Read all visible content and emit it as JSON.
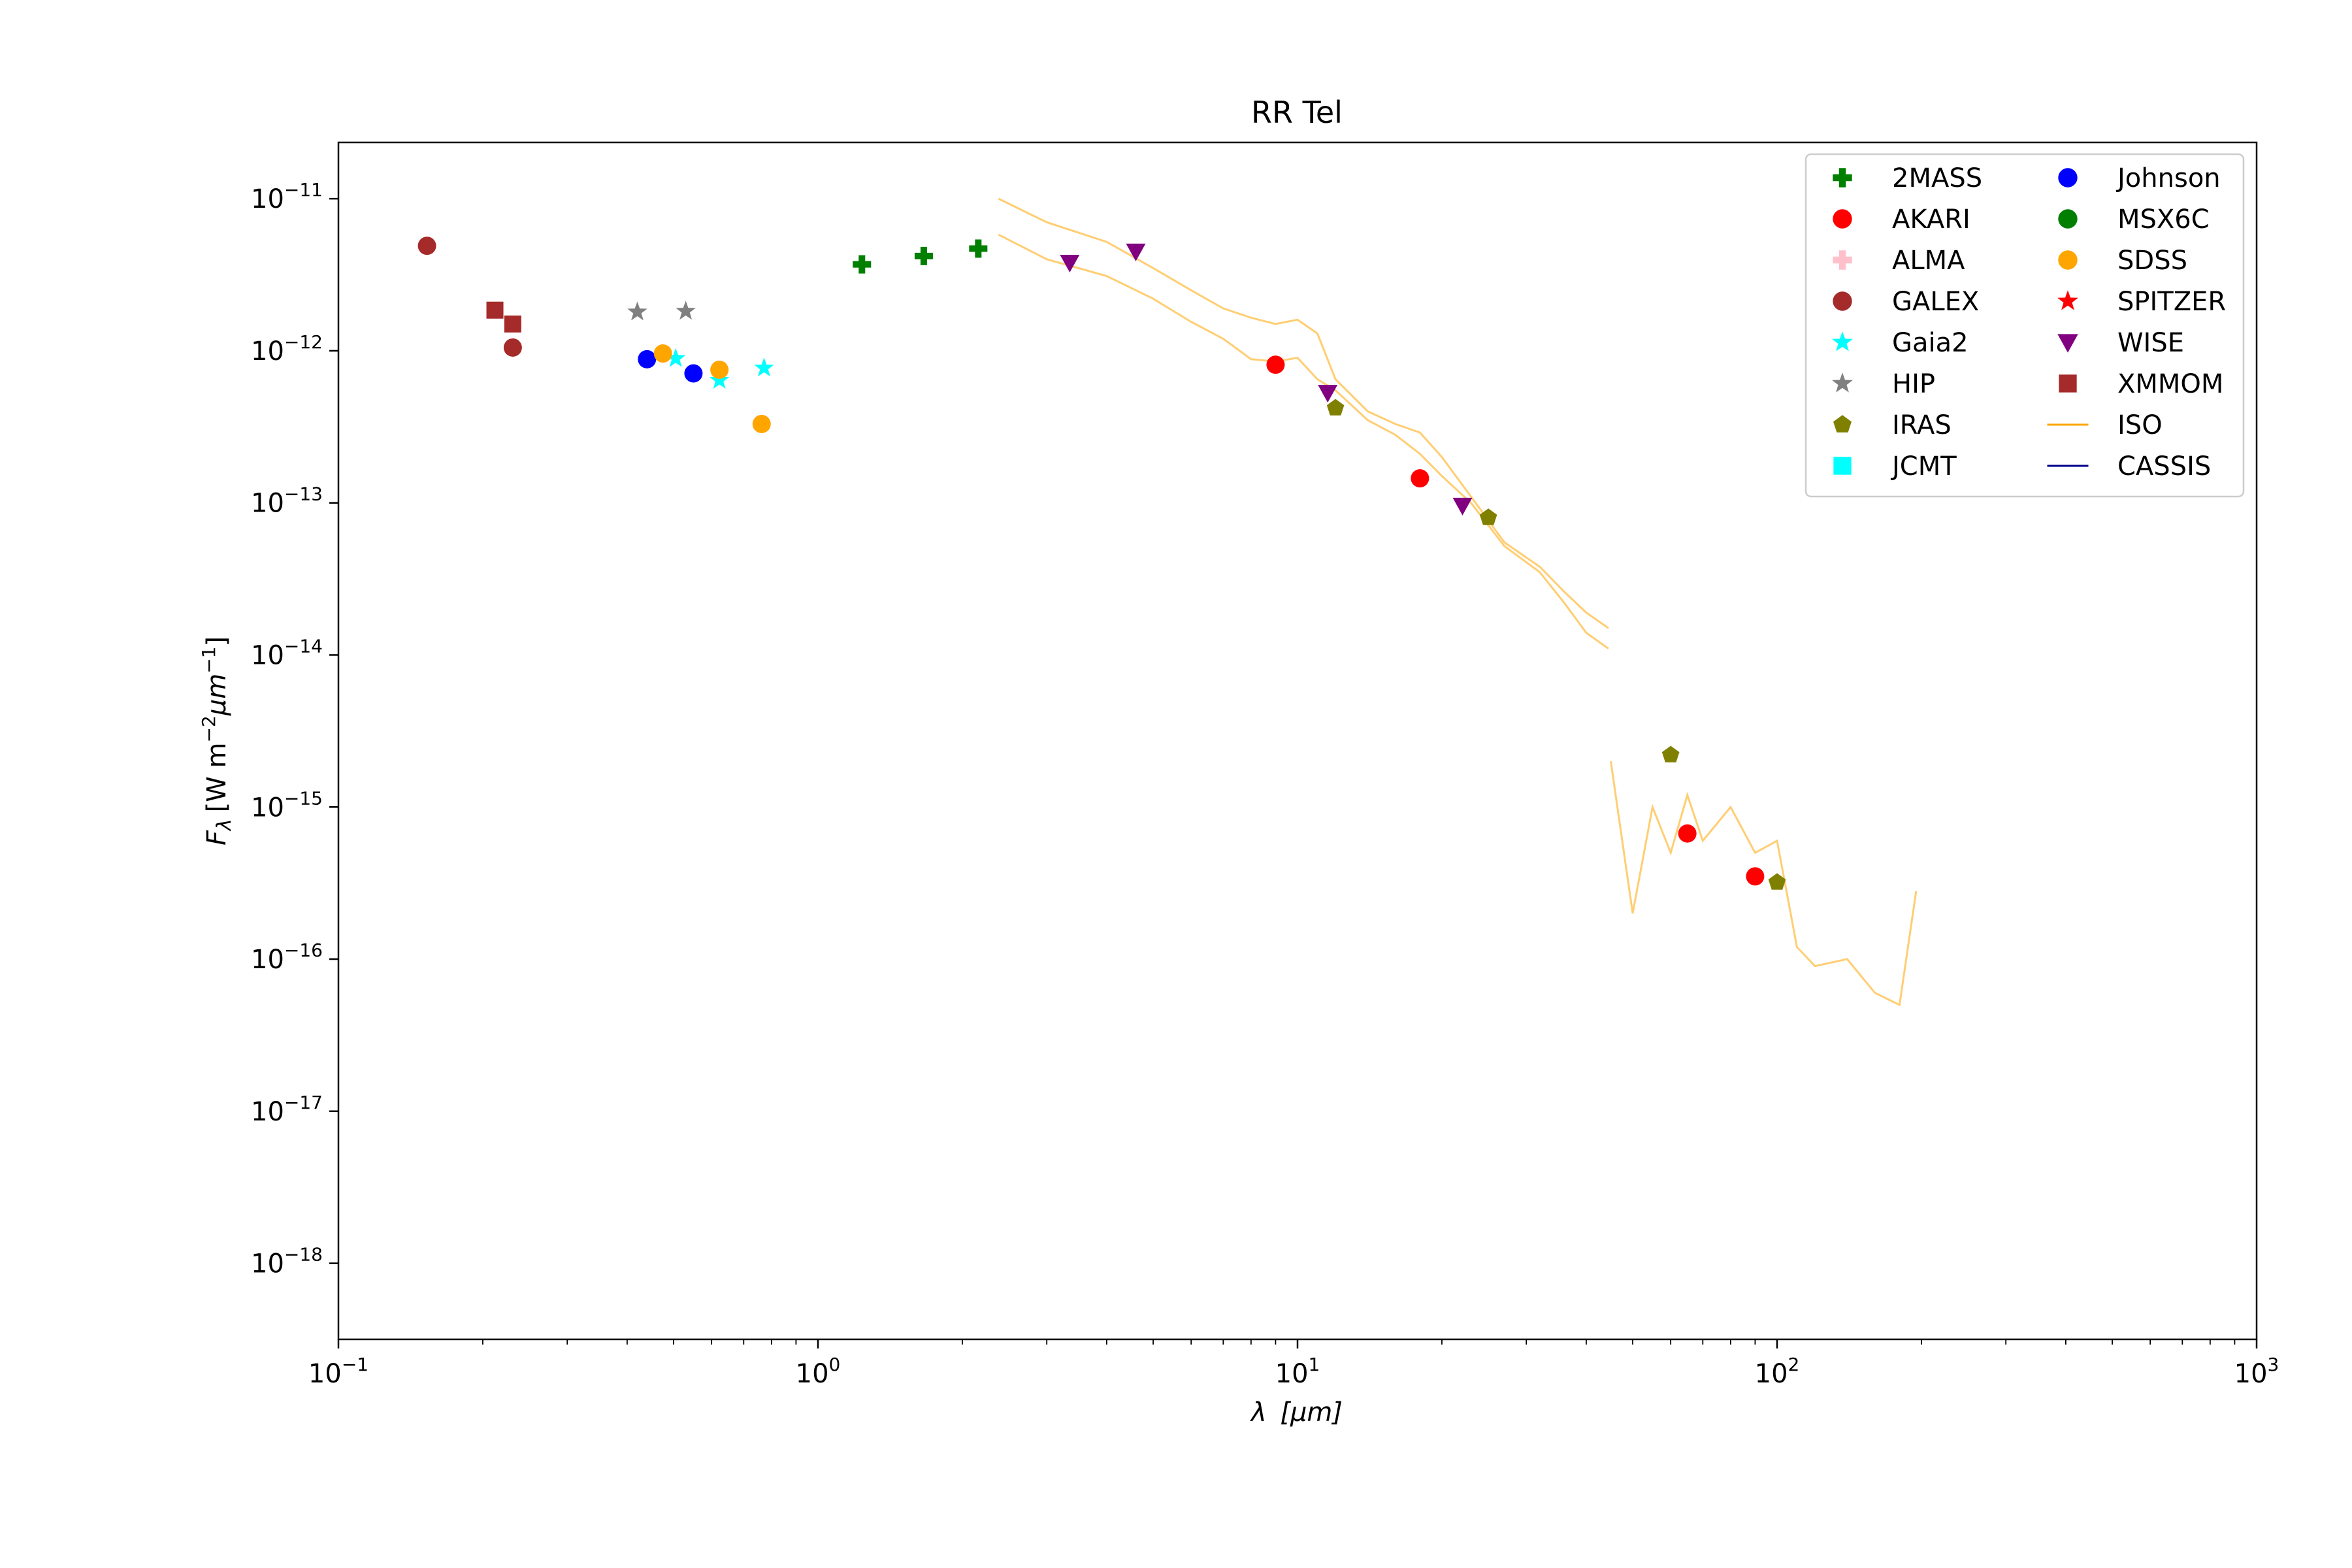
{
  "chart_data": {
    "type": "scatter",
    "title": "RR Tel",
    "xlabel_var": "λ",
    "xlabel_unit": "[μm]",
    "ylabel_var": "F",
    "ylabel_sub": "λ",
    "ylabel_unit_a": "[W m",
    "ylabel_exp_a": "−2",
    "ylabel_unit_b": "μm",
    "ylabel_exp_b": "−1",
    "ylabel_close": "]",
    "xscale": "log",
    "yscale": "log",
    "xlim": [
      0.1,
      1000
    ],
    "ylim_log10": [
      -18.5,
      -10.63
    ],
    "grid": false,
    "legend_position": "upper-right",
    "x_ticks": [
      {
        "value": 0.1,
        "base": "10",
        "exp": "−1"
      },
      {
        "value": 1,
        "base": "10",
        "exp": "0"
      },
      {
        "value": 10,
        "base": "10",
        "exp": "1"
      },
      {
        "value": 100,
        "base": "10",
        "exp": "2"
      },
      {
        "value": 1000,
        "base": "10",
        "exp": "3"
      }
    ],
    "y_ticks": [
      {
        "value": -11,
        "base": "10",
        "exp": "−11"
      },
      {
        "value": -12,
        "base": "10",
        "exp": "−12"
      },
      {
        "value": -13,
        "base": "10",
        "exp": "−13"
      },
      {
        "value": -14,
        "base": "10",
        "exp": "−14"
      },
      {
        "value": -15,
        "base": "10",
        "exp": "−15"
      },
      {
        "value": -16,
        "base": "10",
        "exp": "−16"
      },
      {
        "value": -17,
        "base": "10",
        "exp": "−17"
      },
      {
        "value": -18,
        "base": "10",
        "exp": "−18"
      }
    ],
    "series": [
      {
        "name": "2MASS",
        "marker": "plus",
        "color": "#007f00",
        "points": [
          [
            1.235,
            3.7e-12
          ],
          [
            1.662,
            4.2e-12
          ],
          [
            2.159,
            4.7e-12
          ]
        ]
      },
      {
        "name": "AKARI",
        "marker": "circle",
        "color": "#ff0000",
        "points": [
          [
            9.0,
            8.1e-13
          ],
          [
            18.0,
            1.45e-13
          ],
          [
            65.0,
            6.7e-16
          ],
          [
            90.0,
            3.5e-16
          ]
        ]
      },
      {
        "name": "ALMA",
        "marker": "plus",
        "color": "#ffc0cb",
        "points": []
      },
      {
        "name": "GALEX",
        "marker": "circle",
        "color": "#a52a2a",
        "points": [
          [
            0.153,
            4.9e-12
          ],
          [
            0.231,
            1.05e-12
          ]
        ]
      },
      {
        "name": "Gaia2",
        "marker": "star",
        "color": "#00ffff",
        "points": [
          [
            0.505,
            8.9e-13
          ],
          [
            0.623,
            6.4e-13
          ],
          [
            0.772,
            7.7e-13
          ]
        ]
      },
      {
        "name": "HIP",
        "marker": "star",
        "color": "#808080",
        "points": [
          [
            0.42,
            1.8e-12
          ],
          [
            0.53,
            1.82e-12
          ]
        ]
      },
      {
        "name": "IRAS",
        "marker": "pentagon",
        "color": "#808000",
        "points": [
          [
            12.0,
            4.2e-13
          ],
          [
            25.0,
            8e-14
          ],
          [
            60.0,
            2.2e-15
          ],
          [
            100.0,
            3.2e-16
          ]
        ]
      },
      {
        "name": "JCMT",
        "marker": "square",
        "color": "#00ffff",
        "points": []
      },
      {
        "name": "Johnson",
        "marker": "circle",
        "color": "#0000ff",
        "points": [
          [
            0.44,
            8.8e-13
          ],
          [
            0.55,
            7.1e-13
          ]
        ]
      },
      {
        "name": "MSX6C",
        "marker": "circle",
        "color": "#007f00",
        "points": []
      },
      {
        "name": "SDSS",
        "marker": "circle",
        "color": "#ffa500",
        "points": [
          [
            0.475,
            9.6e-13
          ],
          [
            0.623,
            7.5e-13
          ],
          [
            0.763,
            3.3e-13
          ]
        ]
      },
      {
        "name": "SPITZER",
        "marker": "star",
        "color": "#ff0000",
        "points": []
      },
      {
        "name": "WISE",
        "marker": "triangle-down",
        "color": "#800080",
        "points": [
          [
            3.35,
            3.8e-12
          ],
          [
            4.6,
            4.5e-12
          ],
          [
            11.56,
            5.3e-13
          ],
          [
            22.08,
            9.6e-14
          ]
        ]
      },
      {
        "name": "XMMOM",
        "marker": "square",
        "color": "#a52a2a",
        "points": [
          [
            0.212,
            1.85e-12
          ],
          [
            0.231,
            1.5e-12
          ]
        ]
      },
      {
        "name": "ISO",
        "marker": "line",
        "color": "#ffa500",
        "segments": [
          [
            [
              2.38,
              1e-11
            ],
            [
              3.0,
              7e-12
            ],
            [
              4.0,
              5.2e-12
            ],
            [
              5.0,
              3.5e-12
            ],
            [
              6.0,
              2.5e-12
            ],
            [
              7.0,
              1.9e-12
            ],
            [
              8.0,
              1.65e-12
            ],
            [
              9.0,
              1.5e-12
            ],
            [
              10.0,
              1.6e-12
            ],
            [
              11.0,
              1.3e-12
            ],
            [
              12.0,
              6.5e-13
            ],
            [
              14.0,
              4e-13
            ],
            [
              16.0,
              3.3e-13
            ],
            [
              18.0,
              2.9e-13
            ],
            [
              20.0,
              2e-13
            ],
            [
              23.0,
              1.1e-13
            ],
            [
              27.0,
              5.5e-14
            ],
            [
              32.0,
              3.8e-14
            ],
            [
              36.0,
              2.6e-14
            ],
            [
              40.0,
              1.9e-14
            ],
            [
              44.5,
              1.5e-14
            ]
          ],
          [
            [
              2.38,
              5.8e-12
            ],
            [
              3.0,
              4e-12
            ],
            [
              4.0,
              3.1e-12
            ],
            [
              5.0,
              2.2e-12
            ],
            [
              6.0,
              1.55e-12
            ],
            [
              7.0,
              1.2e-12
            ],
            [
              8.0,
              8.8e-13
            ],
            [
              9.0,
              8.5e-13
            ],
            [
              10.0,
              9e-13
            ],
            [
              11.0,
              6.5e-13
            ],
            [
              12.0,
              5.5e-13
            ],
            [
              14.0,
              3.5e-13
            ],
            [
              16.0,
              2.8e-13
            ],
            [
              18.0,
              2.1e-13
            ],
            [
              20.0,
              1.5e-13
            ],
            [
              23.0,
              1e-13
            ],
            [
              27.0,
              5.2e-14
            ],
            [
              32.0,
              3.5e-14
            ],
            [
              36.0,
              2.2e-14
            ],
            [
              40.0,
              1.4e-14
            ],
            [
              44.5,
              1.1e-14
            ]
          ],
          [
            [
              45.0,
              2e-15
            ],
            [
              50.0,
              2e-16
            ],
            [
              55.0,
              1e-15
            ],
            [
              60.0,
              5e-16
            ],
            [
              65.0,
              1.2e-15
            ],
            [
              70.0,
              6e-16
            ],
            [
              80.0,
              1e-15
            ],
            [
              90.0,
              5e-16
            ],
            [
              100.0,
              6e-16
            ],
            [
              110.0,
              1.2e-16
            ],
            [
              120.0,
              9e-17
            ],
            [
              140.0,
              1e-16
            ],
            [
              160.0,
              6e-17
            ],
            [
              180.0,
              5e-17
            ],
            [
              195.0,
              2.8e-16
            ]
          ]
        ]
      },
      {
        "name": "CASSIS",
        "marker": "line",
        "color": "#00008b",
        "points": []
      }
    ]
  }
}
